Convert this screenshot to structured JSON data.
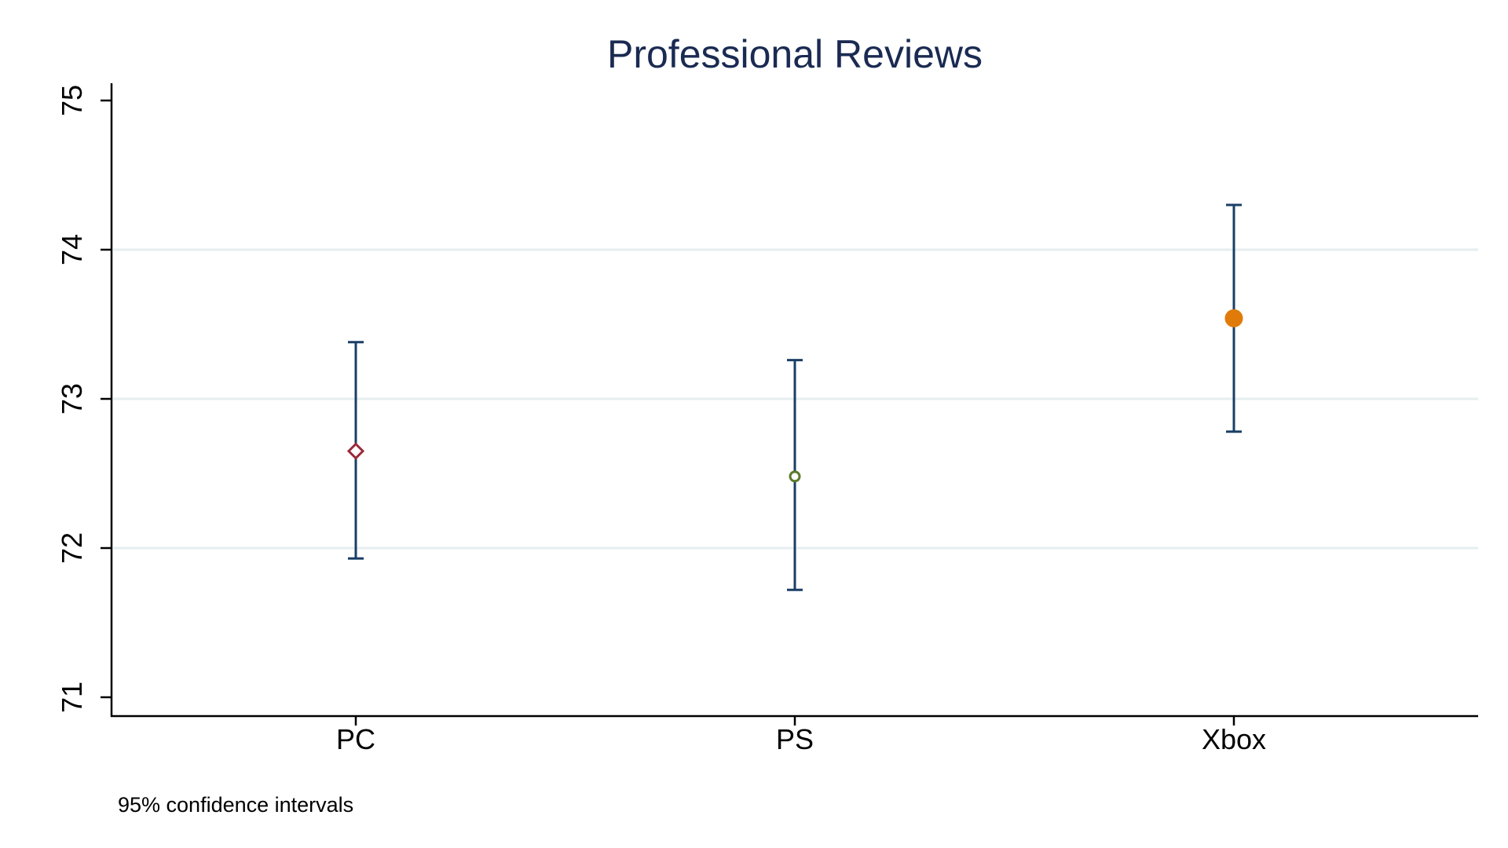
{
  "chart_data": {
    "type": "scatter",
    "title": "Professional Reviews",
    "note": "95% confidence intervals",
    "categories": [
      "PC",
      "PS",
      "Xbox"
    ],
    "xlabel": "",
    "ylabel": "",
    "ylim": [
      71,
      75
    ],
    "yticks": [
      71,
      72,
      73,
      74,
      75
    ],
    "grid": true,
    "legend": "none",
    "points": [
      {
        "category": "PC",
        "estimate": 72.65,
        "ci_low": 71.93,
        "ci_high": 73.38,
        "marker": "diamond-hollow",
        "color": "#9a2a3a"
      },
      {
        "category": "PS",
        "estimate": 72.48,
        "ci_low": 71.72,
        "ci_high": 73.26,
        "marker": "circle-hollow",
        "color": "#5a7a2a"
      },
      {
        "category": "Xbox",
        "estimate": 73.54,
        "ci_low": 72.78,
        "ci_high": 74.3,
        "marker": "circle-filled",
        "color": "#e07b0a"
      }
    ]
  },
  "colors": {
    "title": "#1a2a52",
    "errorbar": "#1a3f66",
    "gridline": "#e6eef0",
    "axis": "#000000"
  }
}
